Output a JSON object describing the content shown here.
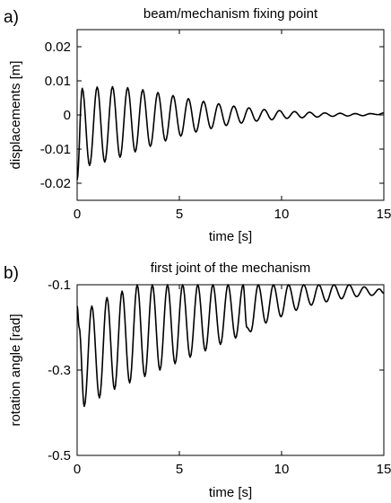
{
  "chart_data": [
    {
      "panel_label": "a)",
      "type": "line",
      "title": "beam/mechanism fixing point",
      "xlabel": "time [s]",
      "ylabel": "displacements [m]",
      "xlim": [
        0,
        15
      ],
      "ylim": [
        -0.025,
        0.025
      ],
      "xticks": [
        0,
        5,
        10,
        15
      ],
      "yticks": [
        -0.02,
        -0.01,
        0,
        0.01,
        0.02
      ],
      "xtick_labels": [
        "0",
        "5",
        "10",
        "15"
      ],
      "ytick_labels": [
        "-0.02",
        "-0.01",
        "0",
        "0.01",
        "0.02"
      ],
      "grid": false,
      "series": [
        {
          "color": "#000000",
          "x": [
            0,
            0.25,
            0.61,
            0.98,
            1.35,
            1.73,
            2.1,
            2.47,
            2.84,
            3.21,
            3.58,
            3.95,
            4.32,
            4.69,
            5.07,
            5.44,
            5.81,
            6.18,
            6.55,
            6.92,
            7.29,
            7.66,
            8.03,
            8.4,
            8.77,
            9.15,
            9.52,
            9.89,
            10.26,
            10.63,
            11.0,
            11.37,
            11.74,
            12.11,
            12.49,
            12.86,
            13.23,
            13.6,
            13.97,
            14.34,
            14.71,
            15
          ],
          "y": [
            -0.019,
            0.0078,
            -0.0148,
            0.0082,
            -0.0138,
            0.0083,
            -0.0124,
            0.008,
            -0.0108,
            0.0074,
            -0.0092,
            0.0066,
            -0.0076,
            0.0057,
            -0.0062,
            0.0048,
            -0.005,
            0.004,
            -0.004,
            0.0033,
            -0.0031,
            0.0026,
            -0.0024,
            0.0021,
            -0.0018,
            0.0016,
            -0.0014,
            0.0013,
            -0.001,
            0.001,
            -0.0008,
            0.0008,
            -0.0006,
            0.0006,
            -0.0004,
            0.0005,
            -0.0003,
            0.0004,
            -0.0002,
            0.0004,
            0.0001,
            0.0006
          ]
        }
      ]
    },
    {
      "panel_label": "b)",
      "type": "line",
      "title": "first joint of the mechanism",
      "xlabel": "time [s]",
      "ylabel": "rotation angle [rad]",
      "xlim": [
        0,
        15
      ],
      "ylim": [
        -0.5,
        -0.1
      ],
      "xticks": [
        0,
        5,
        10,
        15
      ],
      "yticks": [
        -0.5,
        -0.3,
        -0.1
      ],
      "xtick_labels": [
        "0",
        "5",
        "10",
        "15"
      ],
      "ytick_labels": [
        "-0.5",
        "-0.3",
        "-0.1"
      ],
      "grid": false,
      "series": [
        {
          "color": "#000000",
          "x": [
            0,
            0.1,
            0.35,
            0.72,
            1.09,
            1.46,
            1.83,
            2.2,
            2.57,
            2.94,
            3.31,
            3.68,
            4.05,
            4.42,
            4.79,
            5.16,
            5.53,
            5.9,
            6.27,
            6.64,
            7.01,
            7.38,
            7.75,
            8.12,
            8.3,
            8.49,
            8.86,
            9.23,
            9.6,
            9.97,
            10.34,
            10.71,
            11.08,
            11.45,
            11.82,
            12.19,
            12.56,
            12.93,
            13.3,
            13.67,
            14.04,
            14.41,
            14.78,
            15
          ],
          "y": [
            -0.15,
            -0.2,
            -0.385,
            -0.15,
            -0.365,
            -0.13,
            -0.345,
            -0.115,
            -0.33,
            -0.1,
            -0.315,
            -0.1,
            -0.3,
            -0.1,
            -0.285,
            -0.1,
            -0.27,
            -0.1,
            -0.255,
            -0.1,
            -0.24,
            -0.1,
            -0.225,
            -0.1,
            -0.2,
            -0.21,
            -0.1,
            -0.19,
            -0.1,
            -0.175,
            -0.1,
            -0.16,
            -0.1,
            -0.148,
            -0.1,
            -0.14,
            -0.1,
            -0.133,
            -0.1,
            -0.128,
            -0.105,
            -0.125,
            -0.11,
            -0.12
          ]
        }
      ]
    }
  ]
}
